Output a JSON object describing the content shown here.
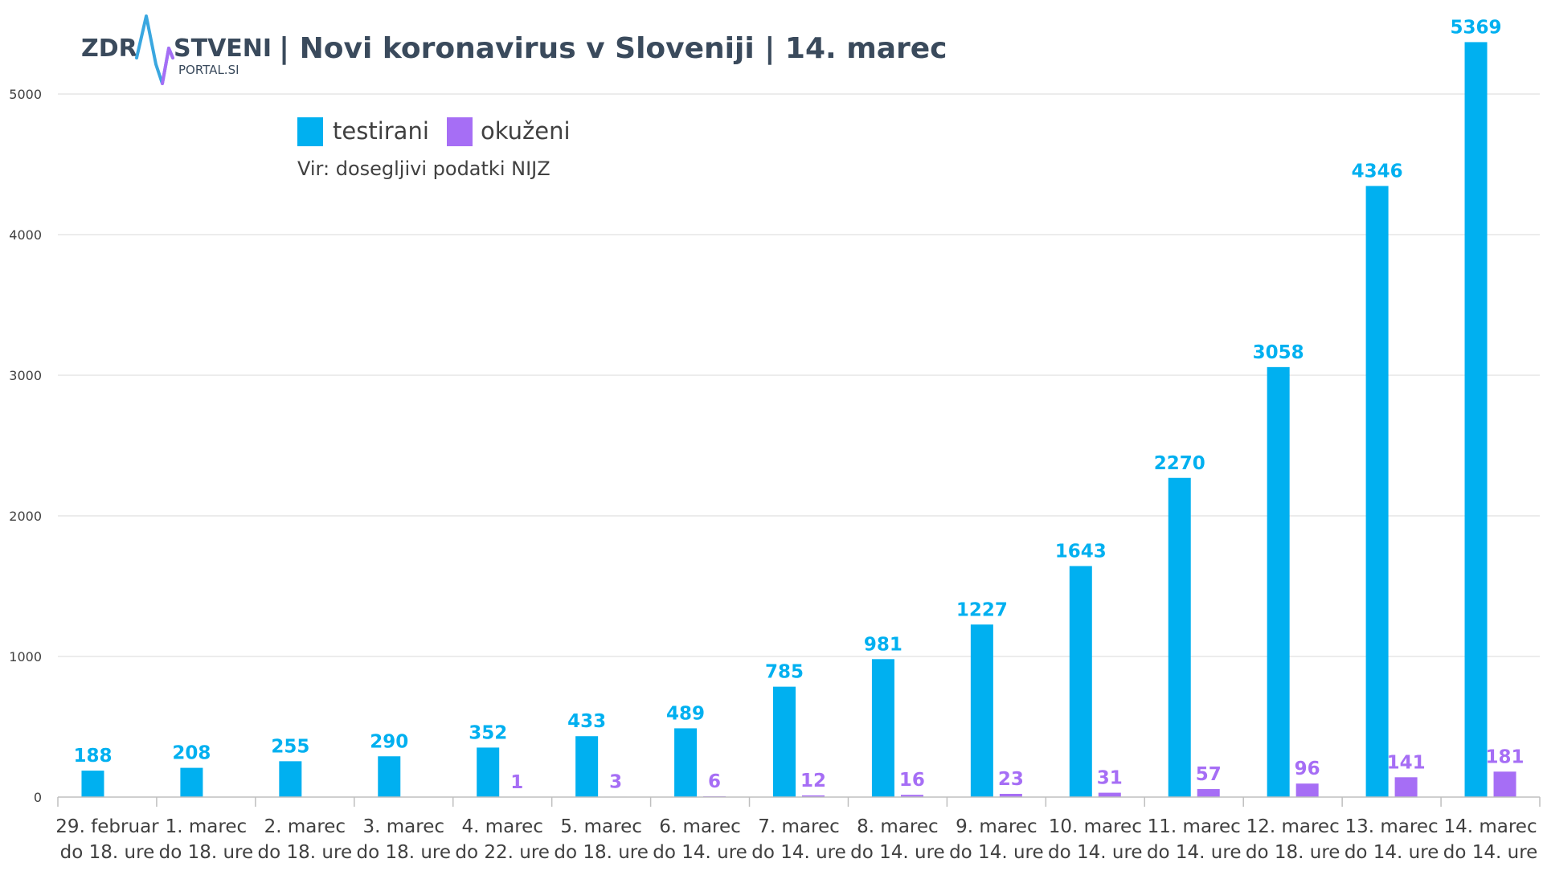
{
  "header": {
    "logo_left": "ZDR",
    "logo_right": "STVENI",
    "logo_sub": "PORTAL.SI",
    "title": "| Novi koronavirus v Sloveniji | 14. marec"
  },
  "legend": {
    "source": "Vir: dosegljivi podatki NIJZ"
  },
  "chart_data": {
    "type": "bar",
    "categories": [
      [
        "29. februar",
        "do 18. ure"
      ],
      [
        "1. marec",
        "do 18. ure"
      ],
      [
        "2. marec",
        "do 18. ure"
      ],
      [
        "3. marec",
        "do 18. ure"
      ],
      [
        "4. marec",
        "do 22. ure"
      ],
      [
        "5. marec",
        "do 18. ure"
      ],
      [
        "6. marec",
        "do 14. ure"
      ],
      [
        "7. marec",
        "do 14. ure"
      ],
      [
        "8. marec",
        "do 14. ure"
      ],
      [
        "9. marec",
        "do 14. ure"
      ],
      [
        "10. marec",
        "do 14. ure"
      ],
      [
        "11. marec",
        "do 14. ure"
      ],
      [
        "12. marec",
        "do 18. ure"
      ],
      [
        "13. marec",
        "do 14. ure"
      ],
      [
        "14. marec",
        "do 14. ure"
      ]
    ],
    "series": [
      {
        "name": "testirani",
        "color": "#00b0f0",
        "values": [
          188,
          208,
          255,
          290,
          352,
          433,
          489,
          785,
          981,
          1227,
          1643,
          2270,
          3058,
          4346,
          5369
        ]
      },
      {
        "name": "okuženi",
        "color": "#a66ef5",
        "values": [
          null,
          null,
          null,
          null,
          1,
          3,
          6,
          12,
          16,
          23,
          31,
          57,
          96,
          141,
          181
        ]
      }
    ],
    "ylim": [
      0,
      5500
    ],
    "yticks": [
      0,
      1000,
      2000,
      3000,
      4000,
      5000
    ],
    "grid": true,
    "legend_position": "top-left",
    "data_labels": true
  }
}
